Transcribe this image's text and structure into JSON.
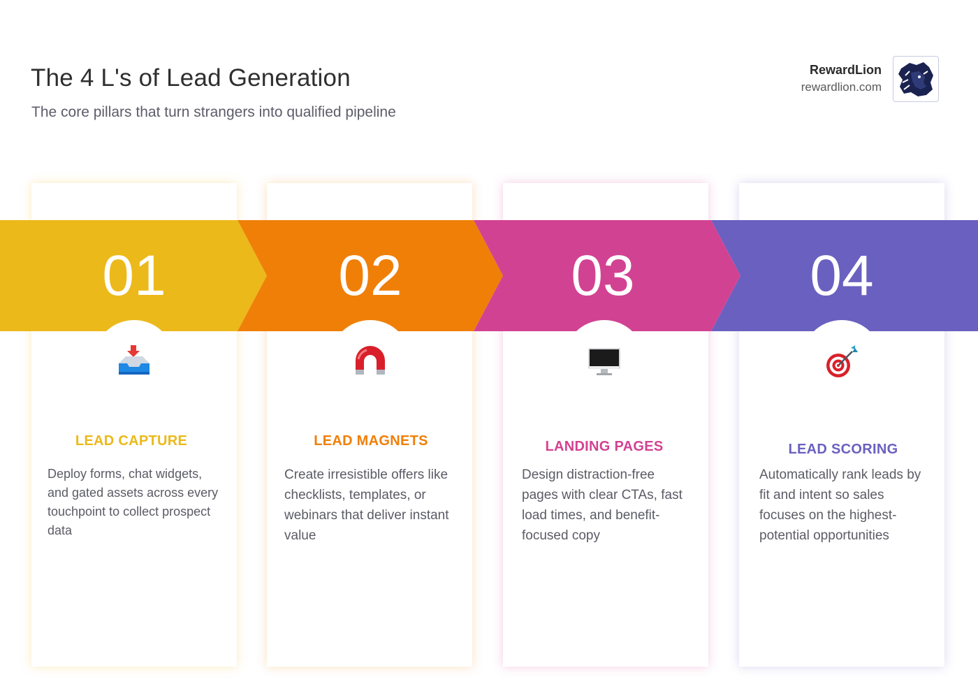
{
  "header": {
    "title": "The 4 L's of Lead Generation",
    "subtitle": "The core pillars that turn strangers into qualified pipeline"
  },
  "brand": {
    "name": "RewardLion",
    "url": "rewardlion.com",
    "logo_icon": "lion-head-icon"
  },
  "pillars": [
    {
      "number": "01",
      "title": "LEAD CAPTURE",
      "description": "Deploy forms, chat widgets, and gated assets across every touchpoint to collect prospect data",
      "color": "#ebb91a",
      "icon": "inbox-tray-icon"
    },
    {
      "number": "02",
      "title": "LEAD MAGNETS",
      "description": "Create irresistible offers like checklists, templates, or webinars that deliver instant value",
      "color": "#f07f08",
      "icon": "magnet-icon"
    },
    {
      "number": "03",
      "title": "LANDING PAGES",
      "description": "Design distraction-free pages with clear CTAs, fast load times, and benefit-focused copy",
      "color": "#d24292",
      "icon": "desktop-monitor-icon"
    },
    {
      "number": "04",
      "title": "LEAD SCORING",
      "description": "Automatically rank leads by fit and intent so sales focuses on the highest-potential opportunities",
      "color": "#6a60c0",
      "icon": "target-dart-icon"
    }
  ]
}
